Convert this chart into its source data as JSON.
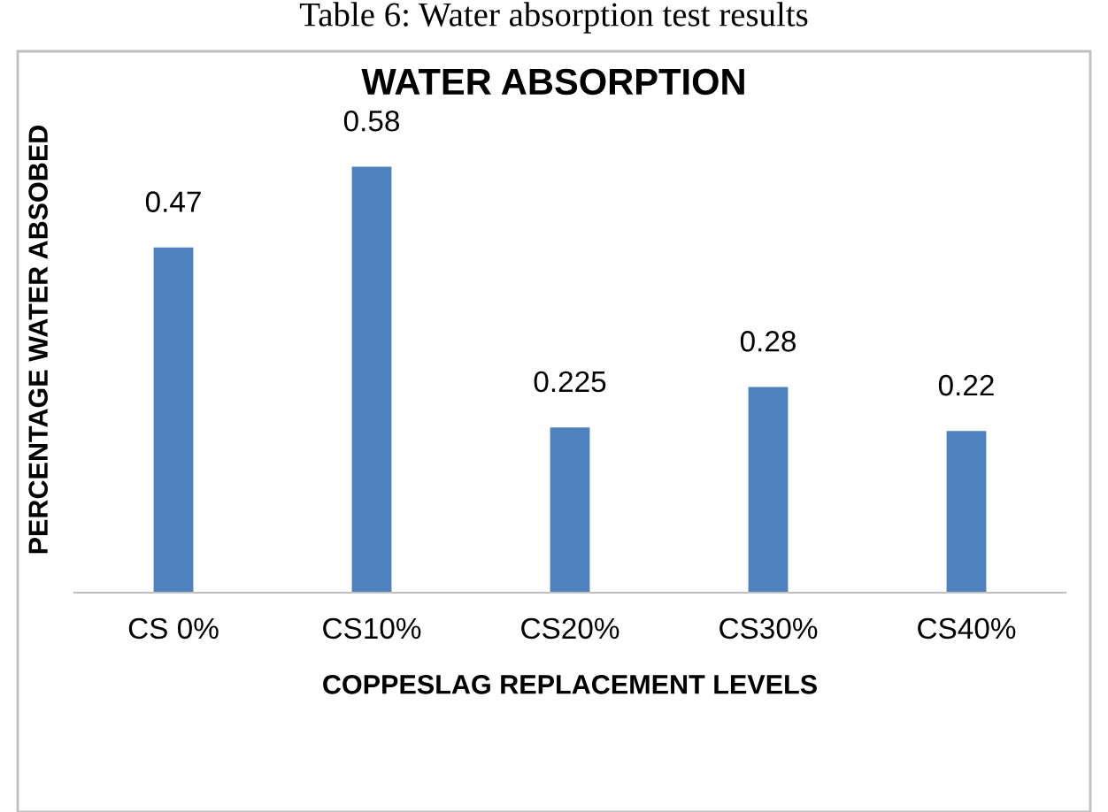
{
  "chart_data": {
    "type": "bar",
    "title": "WATER ABSORPTION",
    "xlabel": "COPPESLAG REPLACEMENT LEVELS",
    "ylabel": "PERCENTAGE WATER ABSOBED",
    "annotations": [
      "Table 6: Water absorption test results"
    ],
    "categories": [
      "CS 0%",
      "CS10%",
      "CS20%",
      "CS30%",
      "CS40%"
    ],
    "values": [
      0.47,
      0.58,
      0.225,
      0.28,
      0.22
    ],
    "color": "#4f81bd",
    "data_labels": true,
    "grid": false,
    "legend": false
  }
}
